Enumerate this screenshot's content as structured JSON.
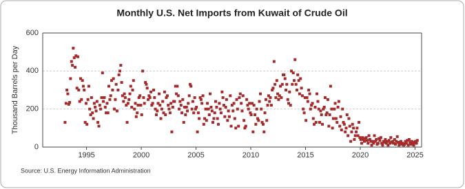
{
  "chart_data": {
    "type": "scatter",
    "title": "Monthly U.S. Net Imports from Kuwait of Crude Oil",
    "y_label": "Thousand Barrels per Day",
    "source": "Source: U.S. Energy Information Administration",
    "xlim": [
      1991,
      2025.6
    ],
    "xticks": [
      1995,
      2000,
      2005,
      2010,
      2015,
      2020,
      2025
    ],
    "ylim": [
      0,
      600
    ],
    "yticks": [
      0,
      200,
      400,
      600
    ],
    "grid": true,
    "series": [
      {
        "color": "#a52a2a",
        "x": [
          1993.04,
          1993.13,
          1993.21,
          1993.29,
          1993.38,
          1993.46,
          1993.54,
          1993.63,
          1993.71,
          1993.79,
          1993.88,
          1993.96,
          1994.04,
          1994.13,
          1994.21,
          1994.29,
          1994.38,
          1994.46,
          1994.54,
          1994.63,
          1994.71,
          1994.79,
          1994.88,
          1994.96,
          1995.04,
          1995.13,
          1995.21,
          1995.29,
          1995.38,
          1995.46,
          1995.54,
          1995.63,
          1995.71,
          1995.79,
          1995.88,
          1995.96,
          1996.04,
          1996.13,
          1996.21,
          1996.29,
          1996.38,
          1996.46,
          1996.54,
          1996.63,
          1996.71,
          1996.79,
          1996.88,
          1996.96,
          1997.04,
          1997.13,
          1997.21,
          1997.29,
          1997.38,
          1997.46,
          1997.54,
          1997.63,
          1997.71,
          1997.79,
          1997.88,
          1997.96,
          1998.04,
          1998.13,
          1998.21,
          1998.29,
          1998.38,
          1998.46,
          1998.54,
          1998.63,
          1998.71,
          1998.79,
          1998.88,
          1998.96,
          1999.04,
          1999.13,
          1999.21,
          1999.29,
          1999.38,
          1999.46,
          1999.54,
          1999.63,
          1999.71,
          1999.79,
          1999.88,
          1999.96,
          2000.04,
          2000.13,
          2000.21,
          2000.29,
          2000.38,
          2000.46,
          2000.54,
          2000.63,
          2000.71,
          2000.79,
          2000.88,
          2000.96,
          2001.04,
          2001.13,
          2001.21,
          2001.29,
          2001.38,
          2001.46,
          2001.54,
          2001.63,
          2001.71,
          2001.79,
          2001.88,
          2001.96,
          2002.04,
          2002.13,
          2002.21,
          2002.29,
          2002.38,
          2002.46,
          2002.54,
          2002.63,
          2002.71,
          2002.79,
          2002.88,
          2002.96,
          2003.04,
          2003.13,
          2003.21,
          2003.29,
          2003.38,
          2003.46,
          2003.54,
          2003.63,
          2003.71,
          2003.79,
          2003.88,
          2003.96,
          2004.04,
          2004.13,
          2004.21,
          2004.29,
          2004.38,
          2004.46,
          2004.54,
          2004.63,
          2004.71,
          2004.79,
          2004.88,
          2004.96,
          2005.04,
          2005.13,
          2005.21,
          2005.29,
          2005.38,
          2005.46,
          2005.54,
          2005.63,
          2005.71,
          2005.79,
          2005.88,
          2005.96,
          2006.04,
          2006.13,
          2006.21,
          2006.29,
          2006.38,
          2006.46,
          2006.54,
          2006.63,
          2006.71,
          2006.79,
          2006.88,
          2006.96,
          2007.04,
          2007.13,
          2007.21,
          2007.29,
          2007.38,
          2007.46,
          2007.54,
          2007.63,
          2007.71,
          2007.79,
          2007.88,
          2007.96,
          2008.04,
          2008.13,
          2008.21,
          2008.29,
          2008.38,
          2008.46,
          2008.54,
          2008.63,
          2008.71,
          2008.79,
          2008.88,
          2008.96,
          2009.04,
          2009.13,
          2009.21,
          2009.29,
          2009.38,
          2009.46,
          2009.54,
          2009.63,
          2009.71,
          2009.79,
          2009.88,
          2009.96,
          2010.04,
          2010.13,
          2010.21,
          2010.29,
          2010.38,
          2010.46,
          2010.54,
          2010.63,
          2010.71,
          2010.79,
          2010.88,
          2010.96,
          2011.04,
          2011.13,
          2011.21,
          2011.29,
          2011.38,
          2011.46,
          2011.54,
          2011.63,
          2011.71,
          2011.79,
          2011.88,
          2011.96,
          2012.04,
          2012.13,
          2012.21,
          2012.29,
          2012.38,
          2012.46,
          2012.54,
          2012.63,
          2012.71,
          2012.79,
          2012.88,
          2012.96,
          2013.04,
          2013.13,
          2013.21,
          2013.29,
          2013.38,
          2013.46,
          2013.54,
          2013.63,
          2013.71,
          2013.79,
          2013.88,
          2013.96,
          2014.04,
          2014.13,
          2014.21,
          2014.29,
          2014.38,
          2014.46,
          2014.54,
          2014.63,
          2014.71,
          2014.79,
          2014.88,
          2014.96,
          2015.04,
          2015.13,
          2015.21,
          2015.29,
          2015.38,
          2015.46,
          2015.54,
          2015.63,
          2015.71,
          2015.79,
          2015.88,
          2015.96,
          2016.04,
          2016.13,
          2016.21,
          2016.29,
          2016.38,
          2016.46,
          2016.54,
          2016.63,
          2016.71,
          2016.79,
          2016.88,
          2016.96,
          2017.04,
          2017.13,
          2017.21,
          2017.29,
          2017.38,
          2017.46,
          2017.54,
          2017.63,
          2017.71,
          2017.79,
          2017.88,
          2017.96,
          2018.04,
          2018.13,
          2018.21,
          2018.29,
          2018.38,
          2018.46,
          2018.54,
          2018.63,
          2018.71,
          2018.79,
          2018.88,
          2018.96,
          2019.04,
          2019.13,
          2019.21,
          2019.29,
          2019.38,
          2019.46,
          2019.54,
          2019.63,
          2019.71,
          2019.79,
          2019.88,
          2019.96,
          2020.04,
          2020.13,
          2020.21,
          2020.29,
          2020.38,
          2020.46,
          2020.54,
          2020.63,
          2020.71,
          2020.79,
          2020.88,
          2020.96,
          2021.04,
          2021.13,
          2021.21,
          2021.29,
          2021.38,
          2021.46,
          2021.54,
          2021.63,
          2021.71,
          2021.79,
          2021.88,
          2021.96,
          2022.04,
          2022.13,
          2022.21,
          2022.29,
          2022.38,
          2022.46,
          2022.54,
          2022.63,
          2022.71,
          2022.79,
          2022.88,
          2022.96,
          2023.04,
          2023.13,
          2023.21,
          2023.29,
          2023.38,
          2023.46,
          2023.54,
          2023.63,
          2023.71,
          2023.79,
          2023.88,
          2023.96,
          2024.04,
          2024.13,
          2024.21,
          2024.29,
          2024.38,
          2024.46,
          2024.54,
          2024.63,
          2024.71,
          2024.79,
          2024.88,
          2024.96,
          2025.04,
          2025.13,
          2025.21
        ],
        "values": [
          130,
          230,
          300,
          280,
          225,
          235,
          360,
          450,
          430,
          520,
          470,
          420,
          480,
          310,
          475,
          300,
          240,
          360,
          250,
          350,
          320,
          300,
          130,
          230,
          120,
          250,
          320,
          200,
          170,
          260,
          180,
          150,
          230,
          210,
          190,
          240,
          130,
          110,
          220,
          200,
          260,
          390,
          240,
          260,
          210,
          180,
          230,
          180,
          320,
          250,
          270,
          350,
          300,
          360,
          200,
          250,
          330,
          190,
          300,
          380,
          400,
          430,
          340,
          270,
          240,
          280,
          260,
          220,
          130,
          230,
          250,
          280,
          320,
          210,
          300,
          350,
          200,
          230,
          160,
          180,
          220,
          260,
          270,
          220,
          170,
          400,
          260,
          230,
          340,
          330,
          310,
          250,
          270,
          260,
          290,
          220,
          230,
          300,
          260,
          200,
          170,
          190,
          230,
          280,
          220,
          150,
          200,
          240,
          180,
          290,
          170,
          260,
          270,
          220,
          200,
          180,
          230,
          80,
          210,
          240,
          240,
          320,
          280,
          320,
          270,
          200,
          240,
          220,
          180,
          250,
          130,
          210,
          170,
          210,
          190,
          230,
          270,
          330,
          320,
          200,
          240,
          180,
          260,
          200,
          210,
          80,
          180,
          150,
          260,
          250,
          230,
          270,
          120,
          150,
          200,
          140,
          230,
          200,
          170,
          280,
          210,
          190,
          130,
          150,
          180,
          240,
          210,
          150,
          120,
          230,
          200,
          180,
          290,
          260,
          220,
          160,
          210,
          250,
          140,
          190,
          160,
          270,
          110,
          220,
          190,
          230,
          150,
          100,
          250,
          200,
          110,
          260,
          280,
          230,
          190,
          270,
          140,
          100,
          110,
          250,
          220,
          200,
          230,
          180,
          170,
          230,
          80,
          220,
          170,
          120,
          200,
          150,
          140,
          240,
          280,
          200,
          130,
          120,
          80,
          180,
          250,
          140,
          220,
          270,
          240,
          260,
          220,
          300,
          310,
          450,
          330,
          260,
          350,
          280,
          250,
          270,
          320,
          260,
          330,
          380,
          380,
          360,
          300,
          330,
          250,
          230,
          290,
          220,
          400,
          330,
          390,
          350,
          460,
          330,
          300,
          380,
          350,
          280,
          360,
          310,
          270,
          200,
          180,
          260,
          140,
          260,
          240,
          300,
          280,
          200,
          220,
          230,
          150,
          120,
          210,
          130,
          280,
          240,
          200,
          130,
          190,
          170,
          120,
          200,
          210,
          260,
          170,
          180,
          250,
          110,
          170,
          320,
          200,
          100,
          150,
          200,
          230,
          150,
          130,
          210,
          240,
          110,
          160,
          90,
          200,
          130,
          120,
          80,
          100,
          170,
          60,
          150,
          110,
          30,
          80,
          120,
          100,
          40,
          60,
          80,
          100,
          60,
          130,
          50,
          40,
          20,
          50,
          40,
          30,
          45,
          50,
          35,
          20,
          60,
          40,
          30,
          10,
          30,
          20,
          60,
          30,
          40,
          15,
          20,
          45,
          35,
          50,
          20,
          10,
          30,
          25,
          40,
          20,
          30,
          10,
          35,
          20,
          50,
          25,
          30,
          20,
          40,
          15,
          30,
          55,
          25,
          10,
          20,
          30,
          15,
          20,
          10,
          15,
          30,
          20,
          35,
          10,
          40,
          25,
          15,
          30,
          20,
          10,
          25,
          30,
          20,
          35
        ]
      }
    ]
  }
}
